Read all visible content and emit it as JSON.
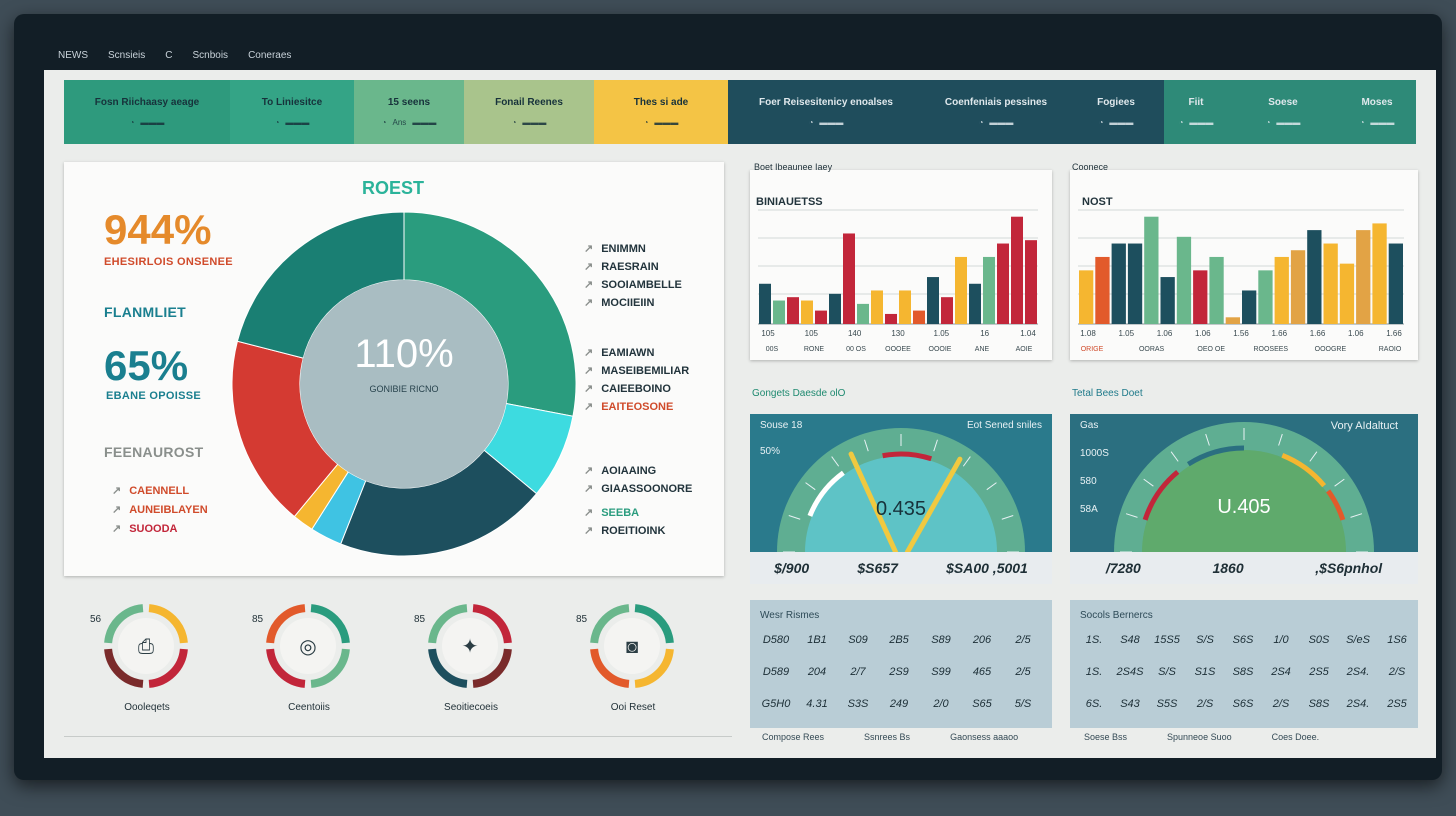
{
  "menubar": [
    "NEWS",
    "Scnsieis",
    "C",
    "Scnbois",
    "Coneraes"
  ],
  "top_tiles": [
    {
      "label": "Fosn Riichaasy aeage",
      "color": "#2e9a7d"
    },
    {
      "label": "To Liniesitce",
      "color": "#34a486"
    },
    {
      "label": "15 seens",
      "sub": "Ans",
      "color": "#6ab78c"
    },
    {
      "label": "Fonail Reenes",
      "color": "#a9c48c"
    },
    {
      "label": "Thes si ade",
      "color": "#f4c445"
    },
    {
      "label": "Foer Reisesitenicy enoalses",
      "color": "#1f4d5c"
    },
    {
      "label": "Coenfeniais pessines",
      "color": "#1f4d5c"
    },
    {
      "label": "Fogiees",
      "color": "#1f4d5c"
    },
    {
      "label": "Fiit",
      "color": "#2e8a78"
    },
    {
      "label": "Soese",
      "color": "#2e8a78"
    },
    {
      "label": "Moses",
      "color": "#2e8a78"
    }
  ],
  "donut_card": {
    "title": "ROEST",
    "center_value": "110%",
    "center_label": "GONIBIE RICNO",
    "left_stats": [
      {
        "value": "944%",
        "label": "EHESIRLOIS ONSENEE",
        "color": "#e58a2b"
      },
      {
        "heading": "FLANMLIET"
      },
      {
        "value": "65%",
        "label": "EBANE OPOISSE",
        "color": "#1a7f8f"
      },
      {
        "heading": "FEENAUROST"
      }
    ],
    "left_legend": [
      "CAENNELL",
      "AUNEIBLAYEN",
      "SUOODA"
    ],
    "right_legend": [
      "ENIMMN",
      "RAESRAIN",
      "SOOIAMBELLE",
      "MOCIIEIIN",
      "EAMIAWN",
      "MASEIBEMILIAR",
      "CAIEEBOINO",
      "EAITEOSONE",
      "AOIAAING",
      "GIAASSOONORE",
      "SEEBA",
      "ROEITIOINK"
    ],
    "segments": [
      {
        "value": 28,
        "color": "#2a9c7e"
      },
      {
        "value": 8,
        "color": "#3ddbe0"
      },
      {
        "value": 20,
        "color": "#1d4f5e"
      },
      {
        "value": 3,
        "color": "#3fc3e3"
      },
      {
        "value": 2,
        "color": "#f5b630"
      },
      {
        "value": 18,
        "color": "#d43a32"
      },
      {
        "value": 21,
        "color": "#1a7f73"
      }
    ]
  },
  "rings": [
    {
      "value": "56",
      "label": "Oooleqets",
      "icon": "printer-icon"
    },
    {
      "value": "85",
      "label": "Ceentoiis",
      "icon": "coin-icon"
    },
    {
      "value": "85",
      "label": "Seoitiecoeis",
      "icon": "compass-icon"
    },
    {
      "value": "85",
      "label": "Ooi Reset",
      "icon": "camera-icon"
    }
  ],
  "bar_chart_1": {
    "header": "Boet Ibeaunee Iaey",
    "title": "BINIAUETSS",
    "values": [
      12,
      7,
      8,
      7,
      4,
      9,
      27,
      6,
      10,
      3,
      10,
      4,
      14,
      8,
      20,
      12,
      20,
      24,
      32,
      25
    ],
    "colors": [
      "#1d4f5e",
      "#6ab78c",
      "#c2263a",
      "#f5b630",
      "#c2263a",
      "#1d4f5e",
      "#c2263a",
      "#6ab78c",
      "#f5b630",
      "#c2263a",
      "#f5b630",
      "#e25a2b",
      "#1d4f5e",
      "#c2263a",
      "#f5b630",
      "#1d4f5e",
      "#6ab78c",
      "#c2263a",
      "#c2263a",
      "#c2263a"
    ],
    "ticks": [
      "105",
      "105",
      "140",
      "130",
      "1.05",
      "16",
      "1.04"
    ],
    "labels": [
      "00S",
      "RONE",
      "00 OS",
      "OOOEE",
      "OOOIE",
      "ANE",
      "AOIE"
    ]
  },
  "bar_chart_2": {
    "header": "Coonece",
    "title": "NOST",
    "values": [
      16,
      20,
      24,
      24,
      32,
      14,
      26,
      16,
      20,
      2,
      10,
      16,
      20,
      22,
      28,
      24,
      18,
      28,
      30,
      24
    ],
    "colors": [
      "#f5b630",
      "#e25a2b",
      "#1d4f5e",
      "#1d4f5e",
      "#6ab78c",
      "#1d4f5e",
      "#6ab78c",
      "#c2263a",
      "#6ab78c",
      "#e2a345",
      "#1d4f5e",
      "#6ab78c",
      "#f5b630",
      "#e2a345",
      "#1d4f5e",
      "#f5b630",
      "#f5b630",
      "#e2a345",
      "#f5b630",
      "#1d4f5e"
    ],
    "ticks": [
      "1.08",
      "1.05",
      "1.06",
      "1.06",
      "1.56",
      "1.66",
      "1.66",
      "1.06",
      "1.66"
    ],
    "labels": [
      "ORIGE",
      "OORAS",
      "OEO OE",
      "ROOSEES",
      "OOOGRE",
      "RAOIO"
    ]
  },
  "section_labels": {
    "left": "Gongets Daesde olO",
    "right": "Tetal Bees Doet"
  },
  "gauge_1": {
    "title_left": "Souse 18",
    "title_right": "Eot Sened sniles",
    "side_value": "50%",
    "center": "0.435",
    "footer": [
      "$/900",
      "$S657",
      "$SA00 ,5001"
    ]
  },
  "gauge_2": {
    "title_left": "Gas",
    "title_right": "Vory AIdaltuct",
    "side_values": [
      "1000S",
      "580",
      "58A"
    ],
    "center": "U.405",
    "footer": [
      "/7280",
      "1860",
      ",$S6pnhol"
    ]
  },
  "table_1": {
    "title": "Wesr Rismes",
    "rows": [
      [
        "D580",
        "1B1",
        "S09",
        "2B5",
        "S89",
        "206",
        "2/5"
      ],
      [
        "D589",
        "204",
        "2/7",
        "2S9",
        "S99",
        "465",
        "2/5"
      ],
      [
        "G5H0",
        "4.31",
        "S3S",
        "249",
        "2/0",
        "S65",
        "5/S"
      ]
    ],
    "footer": [
      "Compose Rees",
      "Ssnrees Bs",
      "Gaonsess aaaoo"
    ]
  },
  "table_2": {
    "title": "Socols Bernercs",
    "rows": [
      [
        "1S.",
        "S48",
        "15S5",
        "S/S",
        "S6S",
        "1/0",
        "S0S",
        "S/eS",
        "1S6"
      ],
      [
        "1S.",
        "2S4S",
        "S/S",
        "S1S",
        "S8S",
        "2S4",
        "2S5",
        "2S4.",
        "2/S"
      ],
      [
        "6S.",
        "S43",
        "S5S",
        "2/S",
        "S6S",
        "2/S",
        "S8S",
        "2S4.",
        "2S5"
      ]
    ],
    "footer": [
      "Soese Bss",
      "Spunneoe Suoo",
      "Coes Doee."
    ]
  }
}
